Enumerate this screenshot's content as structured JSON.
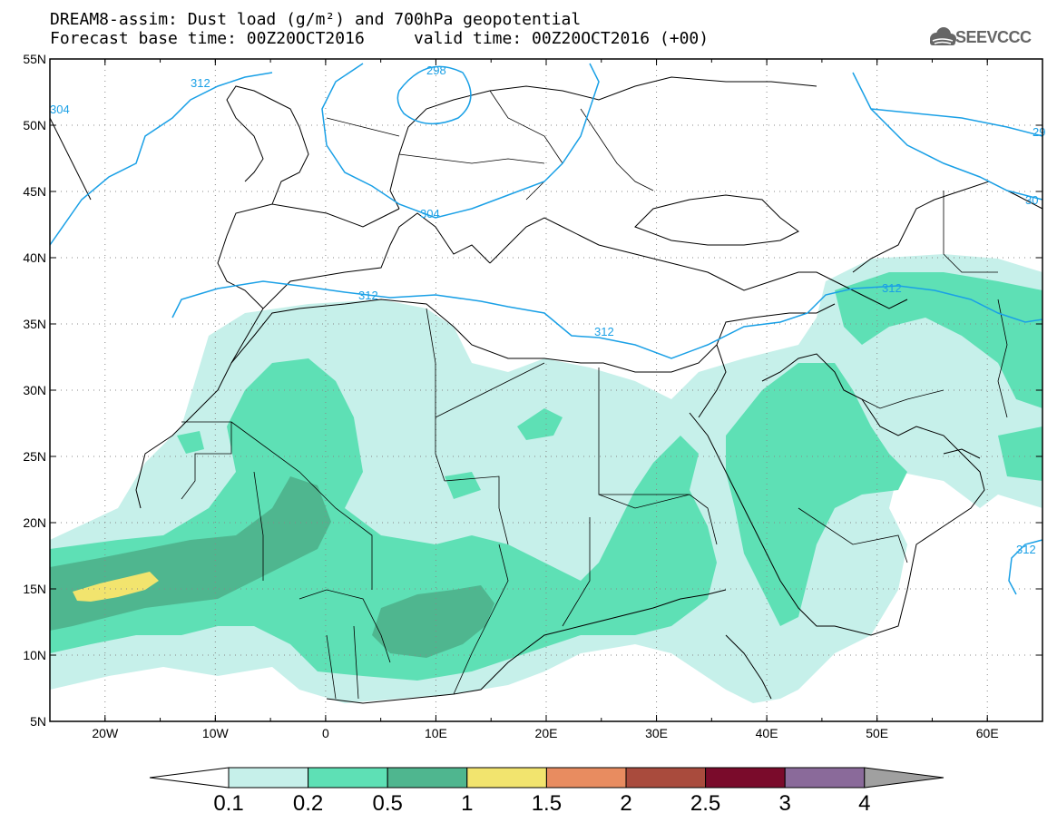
{
  "title": {
    "line1": "DREAM8-assim: Dust load (g/m²) and 700hPa geopotential",
    "line2": "Forecast base time: 00Z20OCT2016     valid time: 00Z20OCT2016 (+00)"
  },
  "logo": {
    "text": "SEEVCCC",
    "icon": "cloud-logo-icon"
  },
  "map": {
    "lon_range": [
      -25,
      65
    ],
    "lat_range": [
      5,
      55
    ],
    "x_ticks": [
      "20W",
      "10W",
      "0",
      "10E",
      "20E",
      "30E",
      "40E",
      "50E",
      "60E"
    ],
    "y_ticks": [
      "55N",
      "50N",
      "45N",
      "40N",
      "35N",
      "30N",
      "25N",
      "20N",
      "15N",
      "10N",
      "5N"
    ],
    "grid": "dotted",
    "contour_labels": [
      "312",
      "298",
      "304",
      "304",
      "312",
      "312",
      "312",
      "29",
      "30",
      "312"
    ]
  },
  "colorbar": {
    "labels": [
      "0.1",
      "0.2",
      "0.5",
      "1",
      "1.5",
      "2",
      "2.5",
      "3",
      "4"
    ],
    "colors": [
      "#c6f0ea",
      "#5ee0b5",
      "#4fb68f",
      "#f2e46e",
      "#e88c60",
      "#a94b3d",
      "#7a0b2b",
      "#8a6a9a",
      "#a0a0a0"
    ]
  }
}
